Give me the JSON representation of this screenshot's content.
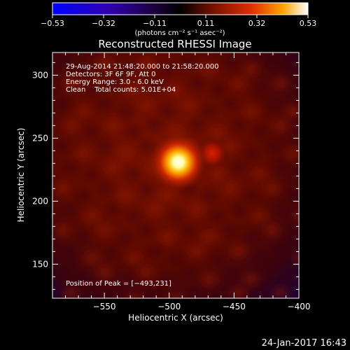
{
  "colorbar": {
    "tick_labels": [
      "−0.53",
      "−0.32",
      "−0.11",
      "0.11",
      "0.32",
      "0.53"
    ],
    "unit_label": "(photons cm⁻² s⁻¹ asec⁻²)",
    "range": [
      -0.53,
      0.53
    ]
  },
  "chart_data": {
    "type": "heatmap",
    "title": "Reconstructed RHESSI Image",
    "xlabel": "Heliocentric X (arcsec)",
    "ylabel": "Heliocentric Y (arcsec)",
    "xlim": [
      -590,
      -400
    ],
    "ylim": [
      123,
      318
    ],
    "x_ticks": [
      -550,
      -500,
      -450,
      -400
    ],
    "y_ticks": [
      150,
      200,
      250,
      300
    ],
    "x_tick_labels": [
      "−550",
      "−500",
      "−450",
      "−400"
    ],
    "y_tick_labels": [
      "150",
      "200",
      "250",
      "300"
    ],
    "annotations": [
      "29-Aug-2014 21:48:20.000 to 21:58:20.000",
      "Detectors: 3F 6F 9F, Att 0",
      "Energy Range: 3.0 - 6.0 keV",
      "Clean    Total counts: 5.01E+04"
    ],
    "peak_label": "Position of Peak = [−493,231]",
    "peak": {
      "x": -493,
      "y": 231
    },
    "secondary_source": {
      "x": -467,
      "y": 238
    },
    "colormap": [
      "#0000ff",
      "#4000a0",
      "#200040",
      "#000000",
      "#600000",
      "#e03000",
      "#ffa000",
      "#ffffff"
    ]
  },
  "footer": {
    "date": "24-Jan-2017 16:43"
  }
}
